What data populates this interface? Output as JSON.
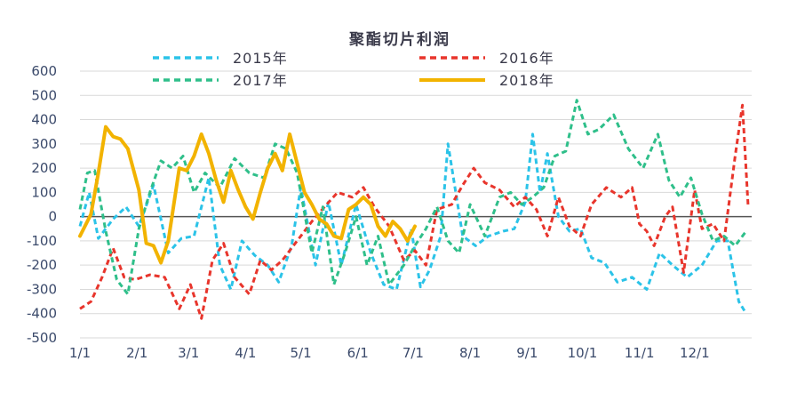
{
  "chart_data": {
    "type": "line",
    "title": "聚酯切片利润",
    "xlabel": "",
    "ylabel": "",
    "ylim": [
      -500,
      600
    ],
    "yticks": [
      -500,
      -400,
      -300,
      -200,
      -100,
      0,
      100,
      200,
      300,
      400,
      500,
      600
    ],
    "ytick_labels": [
      "-500",
      "-400",
      "-300",
      "-200",
      "-100",
      "0",
      "100",
      "200",
      "300",
      "400",
      "500",
      "600"
    ],
    "xlim": [
      0,
      365
    ],
    "xticks": [
      0,
      31,
      59,
      90,
      120,
      151,
      181,
      212,
      243,
      273,
      304,
      334
    ],
    "xtick_labels": [
      "1/1",
      "2/1",
      "3/1",
      "4/1",
      "5/1",
      "6/1",
      "7/1",
      "8/1",
      "9/1",
      "10/1",
      "11/1",
      "12/1"
    ],
    "grid": "horizontal",
    "legend_position": "top",
    "series": [
      {
        "name": "2015年",
        "color": "#2bc3e8",
        "style": "dashed",
        "x": [
          0,
          5,
          10,
          18,
          25,
          32,
          40,
          48,
          55,
          62,
          70,
          76,
          82,
          88,
          95,
          102,
          108,
          115,
          120,
          128,
          135,
          142,
          150,
          158,
          165,
          172,
          180,
          185,
          190,
          196,
          200,
          208,
          215,
          222,
          230,
          236,
          242,
          246,
          250,
          254,
          260,
          266,
          272,
          278,
          285,
          292,
          300,
          308,
          315,
          322,
          330,
          338,
          346,
          352,
          358,
          362
        ],
        "y": [
          -40,
          100,
          -90,
          -10,
          40,
          -40,
          130,
          -150,
          -90,
          -80,
          160,
          -200,
          -300,
          -100,
          -160,
          -200,
          -270,
          -120,
          120,
          -200,
          60,
          -200,
          50,
          -150,
          -280,
          -300,
          -50,
          -290,
          -220,
          -80,
          300,
          -80,
          -120,
          -80,
          -60,
          -50,
          60,
          340,
          100,
          260,
          0,
          -60,
          -50,
          -170,
          -190,
          -270,
          -250,
          -300,
          -150,
          -200,
          -250,
          -200,
          -100,
          -100,
          -350,
          -400
        ]
      },
      {
        "name": "2016年",
        "color": "#e8352c",
        "style": "dashed",
        "x": [
          0,
          6,
          12,
          18,
          24,
          30,
          38,
          46,
          54,
          60,
          66,
          72,
          78,
          84,
          92,
          98,
          104,
          110,
          118,
          126,
          134,
          140,
          148,
          154,
          160,
          168,
          176,
          182,
          188,
          194,
          202,
          208,
          214,
          220,
          228,
          236,
          242,
          248,
          254,
          260,
          266,
          272,
          278,
          286,
          294,
          300,
          304,
          308,
          312,
          318,
          322,
          328,
          334,
          338,
          344,
          350,
          356,
          360,
          363
        ],
        "y": [
          -380,
          -350,
          -250,
          -130,
          -250,
          -260,
          -240,
          -250,
          -380,
          -280,
          -420,
          -180,
          -110,
          -250,
          -320,
          -180,
          -220,
          -180,
          -100,
          -20,
          50,
          100,
          80,
          120,
          40,
          -40,
          -180,
          -140,
          -200,
          30,
          50,
          130,
          200,
          140,
          110,
          40,
          80,
          30,
          -80,
          80,
          -40,
          -80,
          50,
          120,
          80,
          120,
          -30,
          -60,
          -120,
          0,
          40,
          -230,
          110,
          -50,
          -30,
          -100,
          250,
          460,
          50
        ]
      },
      {
        "name": "2017年",
        "color": "#2fbf8a",
        "style": "dashed",
        "x": [
          0,
          4,
          8,
          14,
          20,
          26,
          32,
          38,
          44,
          50,
          56,
          62,
          68,
          76,
          84,
          92,
          100,
          106,
          112,
          118,
          126,
          132,
          138,
          144,
          150,
          156,
          162,
          168,
          176,
          182,
          188,
          194,
          200,
          206,
          212,
          220,
          228,
          234,
          240,
          246,
          252,
          258,
          264,
          270,
          276,
          282,
          290,
          298,
          306,
          314,
          320,
          326,
          332,
          338,
          344,
          350,
          356,
          362
        ],
        "y": [
          30,
          180,
          190,
          -60,
          -260,
          -320,
          -50,
          100,
          230,
          200,
          250,
          100,
          180,
          120,
          240,
          180,
          160,
          300,
          280,
          180,
          -150,
          40,
          -280,
          -150,
          0,
          -200,
          -80,
          -280,
          -200,
          -120,
          -50,
          40,
          -100,
          -150,
          50,
          -80,
          80,
          100,
          50,
          80,
          120,
          250,
          270,
          480,
          340,
          360,
          420,
          280,
          200,
          340,
          150,
          80,
          160,
          10,
          -100,
          -80,
          -120,
          -60
        ]
      },
      {
        "name": "2018年",
        "color": "#f2b300",
        "style": "solid",
        "x": [
          0,
          6,
          10,
          14,
          18,
          22,
          26,
          32,
          36,
          40,
          44,
          48,
          54,
          58,
          62,
          66,
          70,
          74,
          78,
          82,
          86,
          90,
          94,
          98,
          102,
          106,
          110,
          114,
          118,
          122,
          126,
          130,
          134,
          138,
          142,
          146,
          150,
          154,
          158,
          162,
          166,
          170,
          174,
          178,
          182
        ],
        "y": [
          -80,
          10,
          180,
          370,
          330,
          320,
          280,
          110,
          -110,
          -120,
          -190,
          -100,
          200,
          190,
          250,
          340,
          260,
          150,
          60,
          190,
          110,
          40,
          -10,
          100,
          200,
          260,
          190,
          340,
          220,
          100,
          50,
          -10,
          -30,
          -80,
          -90,
          30,
          50,
          80,
          50,
          -40,
          -80,
          -20,
          -50,
          -100,
          -40
        ]
      }
    ]
  }
}
